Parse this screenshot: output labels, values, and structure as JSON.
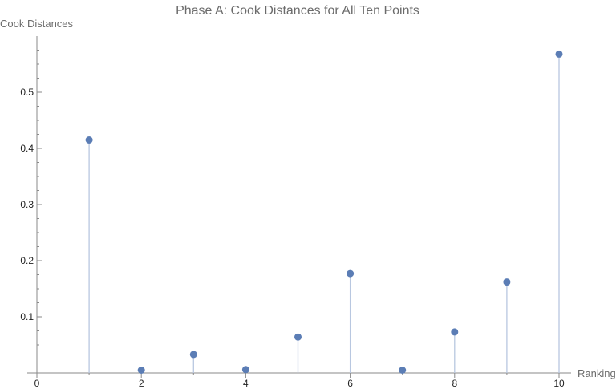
{
  "chart_data": {
    "type": "scatter",
    "style": "stem",
    "title": "Phase A: Cook Distances for All Ten Points",
    "xlabel": "Ranking",
    "ylabel": "Cook Distances",
    "xlim": [
      0,
      10.2
    ],
    "ylim": [
      0,
      0.6
    ],
    "x_ticks": [
      0,
      2,
      4,
      6,
      8,
      10
    ],
    "y_ticks": [
      0.1,
      0.2,
      0.3,
      0.4,
      0.5
    ],
    "x": [
      1,
      2,
      3,
      4,
      5,
      6,
      7,
      8,
      9,
      10
    ],
    "y": [
      0.415,
      0.005,
      0.033,
      0.006,
      0.064,
      0.177,
      0.005,
      0.073,
      0.162,
      0.568
    ],
    "point_color": "#5b7db5",
    "stem_color": "#b8c7e0",
    "grid": false,
    "legend": "none"
  }
}
